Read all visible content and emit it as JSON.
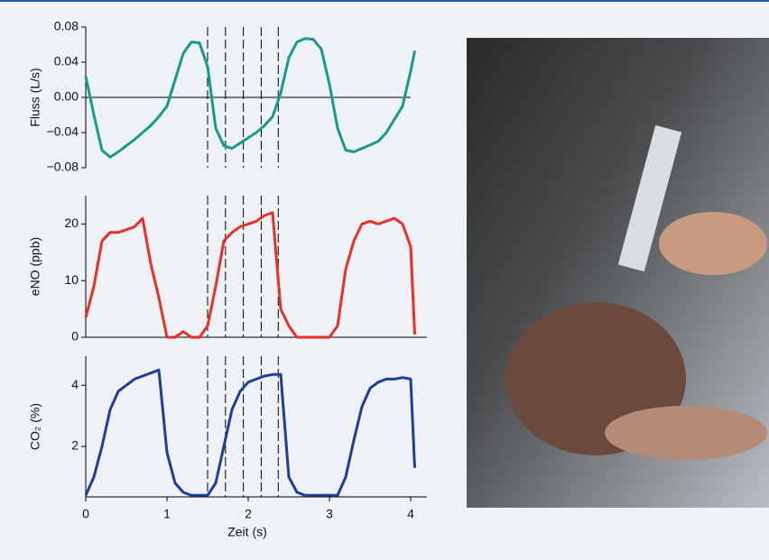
{
  "chart_data": [
    {
      "type": "line",
      "y_label": "Fluss (L/s)",
      "color": "#17998c",
      "zero_line": true,
      "bottom_axis": false,
      "xlim": [
        0,
        4.2
      ],
      "ylim": [
        -0.08,
        0.08
      ],
      "yticks": [
        {
          "value": 0.08,
          "label": "0.08"
        },
        {
          "value": 0.04,
          "label": "0.04"
        },
        {
          "value": 0,
          "label": "0.00"
        },
        {
          "value": -0.04,
          "label": "−0.04"
        },
        {
          "value": -0.08,
          "label": "−0.08"
        }
      ],
      "vlines": [
        1.5,
        1.72,
        1.94,
        2.16,
        2.37
      ],
      "x": [
        0,
        0.1,
        0.2,
        0.3,
        0.4,
        0.5,
        0.6,
        0.7,
        0.8,
        0.9,
        1.0,
        1.1,
        1.2,
        1.3,
        1.4,
        1.5,
        1.6,
        1.7,
        1.8,
        1.9,
        2.0,
        2.1,
        2.2,
        2.3,
        2.4,
        2.5,
        2.6,
        2.7,
        2.8,
        2.9,
        3.0,
        3.1,
        3.2,
        3.3,
        3.4,
        3.5,
        3.6,
        3.7,
        3.8,
        3.9,
        4.0,
        4.05
      ],
      "values": [
        0.024,
        -0.02,
        -0.06,
        -0.068,
        -0.062,
        -0.055,
        -0.048,
        -0.04,
        -0.032,
        -0.022,
        -0.01,
        0.02,
        0.05,
        0.063,
        0.062,
        0.035,
        -0.035,
        -0.055,
        -0.058,
        -0.052,
        -0.046,
        -0.04,
        -0.032,
        -0.022,
        0.005,
        0.045,
        0.063,
        0.067,
        0.066,
        0.055,
        0.015,
        -0.035,
        -0.06,
        -0.062,
        -0.058,
        -0.054,
        -0.05,
        -0.04,
        -0.025,
        -0.01,
        0.03,
        0.053
      ]
    },
    {
      "type": "line",
      "y_label": "eNO (ppb)",
      "color": "#e8302a",
      "zero_line": false,
      "bottom_axis": true,
      "xlim": [
        0,
        4.2
      ],
      "ylim": [
        0,
        25
      ],
      "yticks": [
        0,
        10,
        20
      ],
      "vlines": [
        1.5,
        1.72,
        1.94,
        2.16,
        2.37
      ],
      "x": [
        0,
        0.1,
        0.2,
        0.3,
        0.4,
        0.5,
        0.6,
        0.7,
        0.8,
        0.9,
        1.0,
        1.1,
        1.2,
        1.3,
        1.4,
        1.5,
        1.6,
        1.7,
        1.8,
        1.9,
        2.0,
        2.1,
        2.2,
        2.3,
        2.4,
        2.5,
        2.6,
        2.7,
        2.8,
        2.9,
        3.0,
        3.1,
        3.2,
        3.3,
        3.4,
        3.5,
        3.6,
        3.7,
        3.8,
        3.9,
        4.0,
        4.05
      ],
      "values": [
        3.5,
        9,
        17,
        18.5,
        18.5,
        19,
        19.5,
        21,
        13,
        7,
        0,
        0,
        1,
        0,
        0,
        2,
        9,
        17,
        18.5,
        19.5,
        20,
        20.5,
        21.5,
        22,
        5,
        2,
        0,
        0,
        0,
        0,
        0,
        2,
        12,
        17,
        20,
        20.5,
        20,
        20.5,
        21,
        20,
        16,
        0.5
      ]
    },
    {
      "type": "line",
      "y_label": "CO₂ (%)",
      "x_label": "Zeit (s)",
      "color": "#1c3f9c",
      "zero_line": false,
      "bottom_axis": true,
      "xlim": [
        0,
        4.2
      ],
      "ylim": [
        0.35,
        4.95
      ],
      "yticks": [
        2,
        4
      ],
      "xticks": [
        0,
        1,
        2,
        3,
        4
      ],
      "vlines": [
        1.5,
        1.72,
        1.94,
        2.16,
        2.37
      ],
      "x": [
        0,
        0.1,
        0.2,
        0.3,
        0.4,
        0.5,
        0.6,
        0.7,
        0.8,
        0.9,
        1.0,
        1.1,
        1.2,
        1.3,
        1.4,
        1.5,
        1.6,
        1.7,
        1.8,
        1.9,
        2.0,
        2.1,
        2.2,
        2.3,
        2.4,
        2.5,
        2.6,
        2.7,
        2.8,
        2.9,
        3.0,
        3.1,
        3.2,
        3.3,
        3.4,
        3.5,
        3.6,
        3.7,
        3.8,
        3.9,
        4.0,
        4.05
      ],
      "values": [
        0.4,
        1.0,
        2.0,
        3.2,
        3.8,
        4.0,
        4.2,
        4.3,
        4.4,
        4.5,
        1.8,
        0.8,
        0.5,
        0.4,
        0.4,
        0.4,
        0.8,
        2.0,
        3.2,
        3.8,
        4.1,
        4.2,
        4.3,
        4.35,
        4.35,
        1.0,
        0.5,
        0.4,
        0.4,
        0.4,
        0.4,
        0.4,
        1.0,
        2.2,
        3.3,
        3.9,
        4.1,
        4.2,
        4.2,
        4.25,
        4.2,
        1.3
      ]
    }
  ]
}
